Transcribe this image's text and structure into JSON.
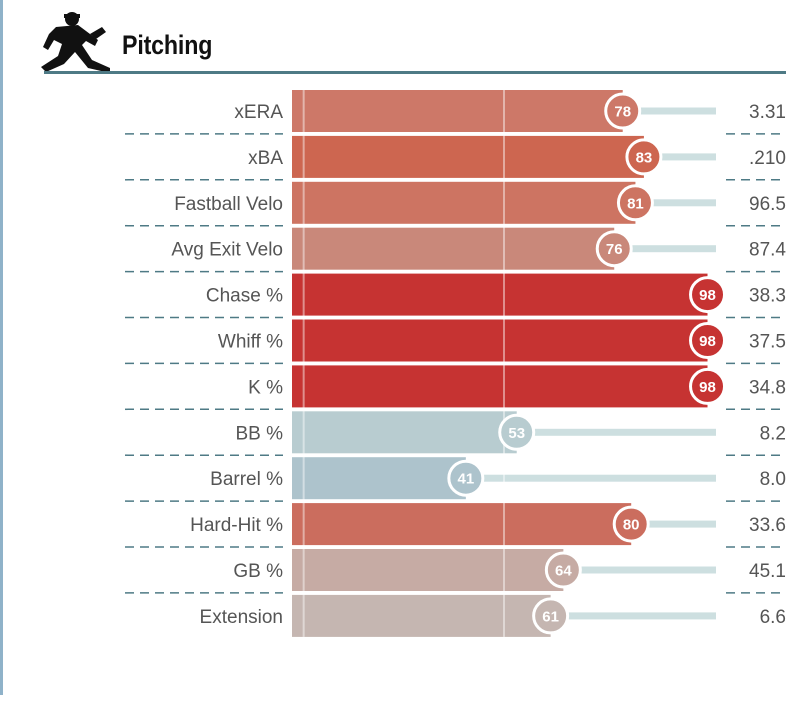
{
  "header": {
    "title": "Pitching",
    "icon": "pitcher-silhouette-icon"
  },
  "colors": {
    "rule": "#4e7a85",
    "divider": "#4e7a85",
    "track": "#cddfe0",
    "text": "#555555"
  },
  "chart_data": {
    "type": "bar",
    "orientation": "horizontal",
    "title": "Pitching",
    "xlim": [
      0,
      100
    ],
    "grid": "vertical at 0, 50",
    "categories": [
      "xERA",
      "xBA",
      "Fastball Velo",
      "Avg Exit Velo",
      "Chase %",
      "Whiff %",
      "K %",
      "BB %",
      "Barrel %",
      "Hard-Hit %",
      "GB %",
      "Extension"
    ],
    "percentiles": [
      78,
      83,
      81,
      76,
      98,
      98,
      98,
      53,
      41,
      80,
      64,
      61
    ],
    "values": [
      "3.31",
      ".210",
      "96.5",
      "87.4",
      "38.3",
      "37.5",
      "34.8",
      "8.2",
      "8.0",
      "33.6",
      "45.1",
      "6.6"
    ],
    "bar_colors": [
      "#cd7868",
      "#cd6650",
      "#cd7462",
      "#c9887a",
      "#c63332",
      "#c63332",
      "#c63332",
      "#b8ccd0",
      "#adc3cc",
      "#cb6d5e",
      "#c6aba4",
      "#c5b6b1"
    ]
  }
}
